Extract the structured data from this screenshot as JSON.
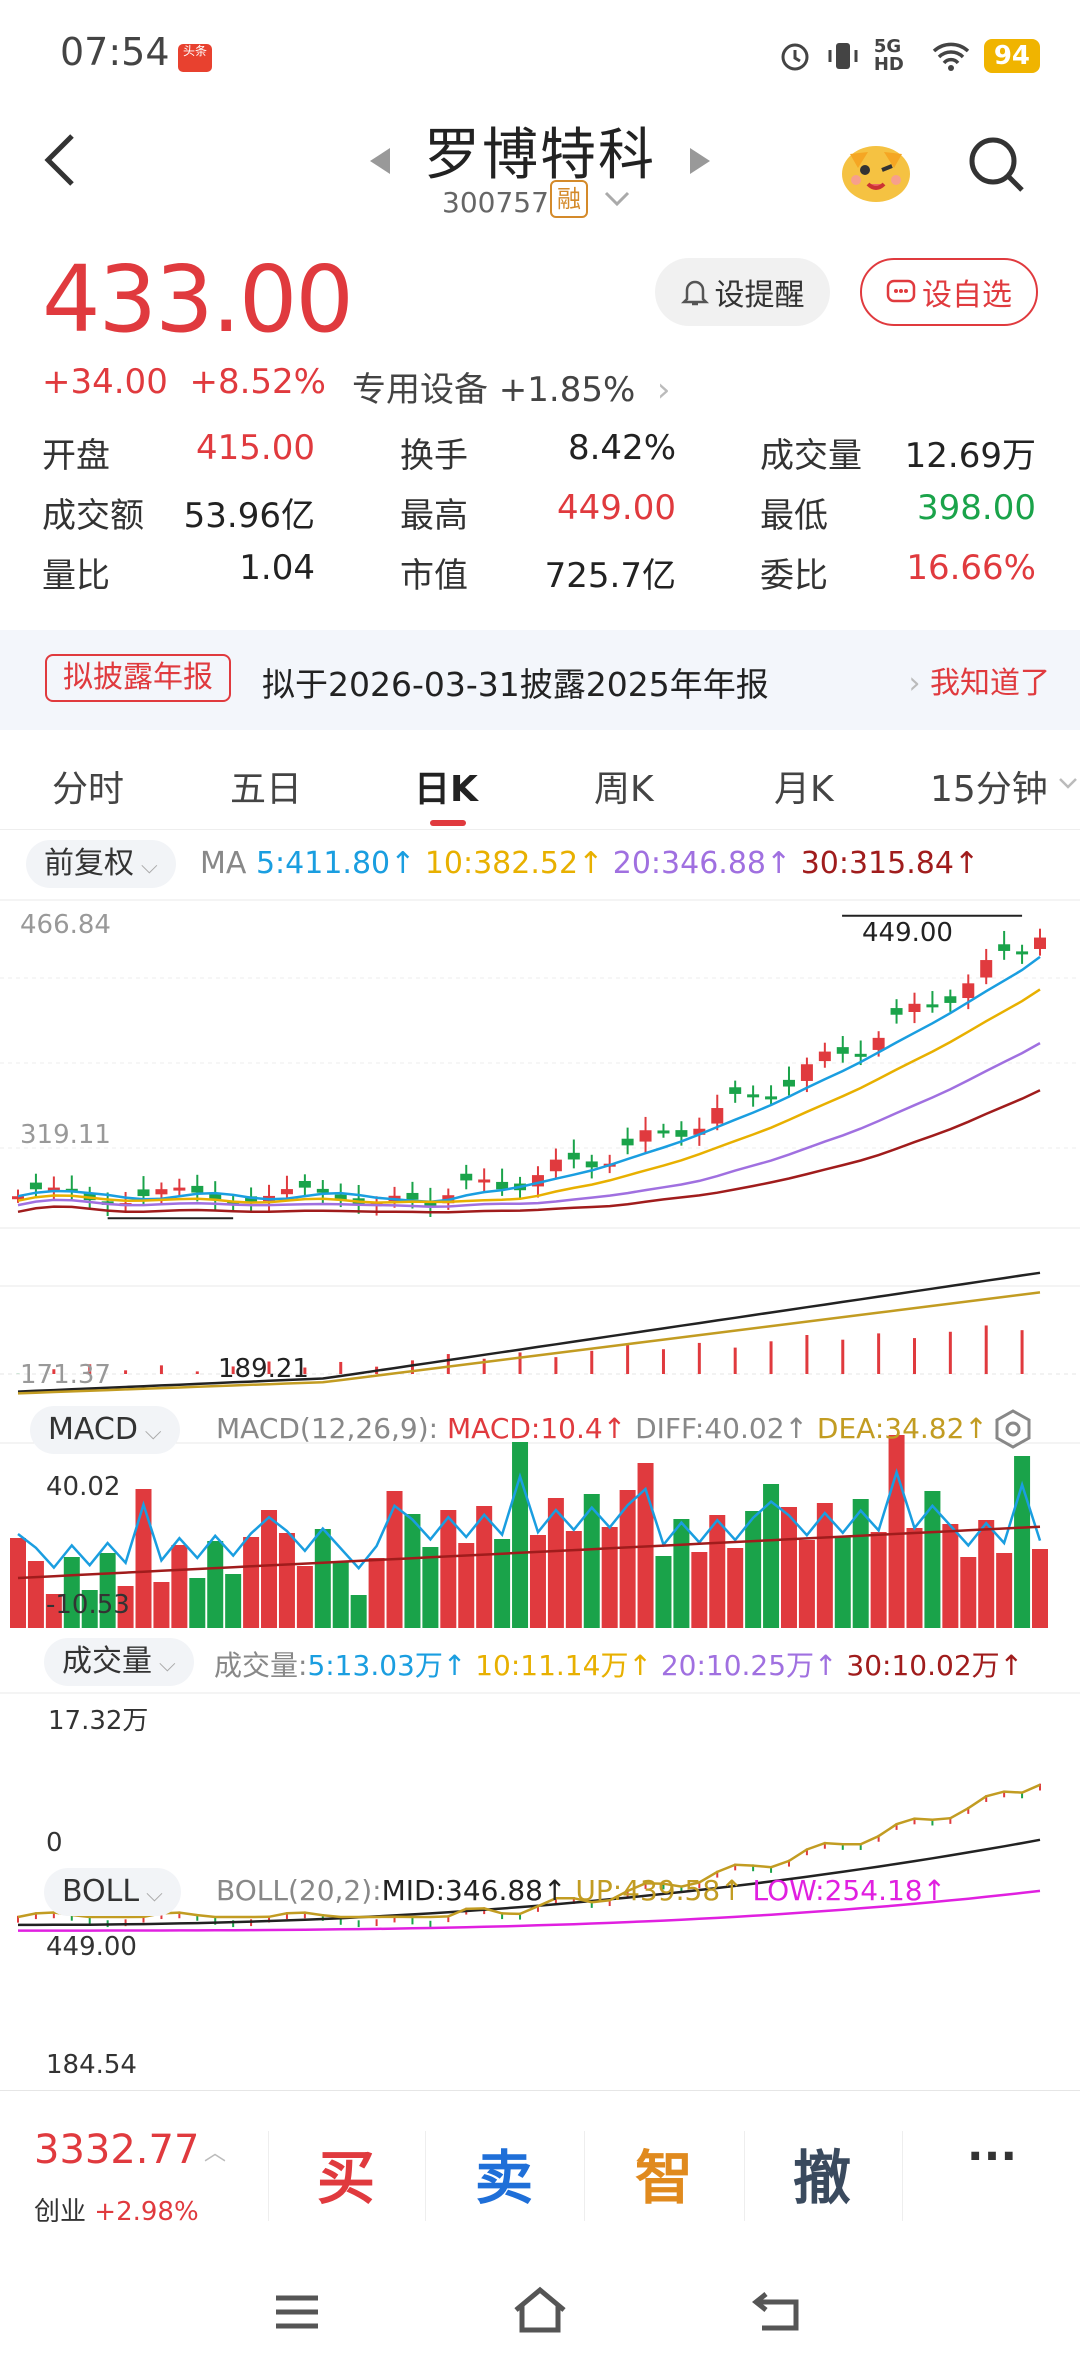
{
  "status": {
    "time": "07:54",
    "toutiao": "头条",
    "net": "5G HD",
    "battery": "94"
  },
  "header": {
    "name": "罗博特科",
    "code": "300757",
    "margin_tag": "融"
  },
  "quote": {
    "price": "433.00",
    "change": "+34.00",
    "change_pct": "+8.52%",
    "sector": "专用设备 +1.85%",
    "remind_label": "设提醒",
    "watch_label": "设自选",
    "stats": [
      {
        "label": "开盘",
        "value": "415.00",
        "color": "red"
      },
      {
        "label": "换手",
        "value": "8.42%",
        "color": "dark"
      },
      {
        "label": "成交量",
        "value": "12.69万",
        "color": "dark"
      },
      {
        "label": "成交额",
        "value": "53.96亿",
        "color": "dark"
      },
      {
        "label": "最高",
        "value": "449.00",
        "color": "red"
      },
      {
        "label": "最低",
        "value": "398.00",
        "color": "green"
      },
      {
        "label": "量比",
        "value": "1.04",
        "color": "dark"
      },
      {
        "label": "市值",
        "value": "725.7亿",
        "color": "dark"
      },
      {
        "label": "委比",
        "value": "16.66%",
        "color": "red"
      }
    ]
  },
  "notice": {
    "tag": "拟披露年报",
    "text": "拟于2026-03-31披露2025年年报",
    "ok": "我知道了"
  },
  "tabs": [
    "分时",
    "五日",
    "日K",
    "周K",
    "月K",
    "15分钟"
  ],
  "active_tab": "日K",
  "kline": {
    "adjust": "前复权",
    "ma_prefix": "MA",
    "ma": [
      {
        "text": "5:411.80↑",
        "color": "#1a9ee0"
      },
      {
        "text": "10:382.52↑",
        "color": "#e8b000"
      },
      {
        "text": "20:346.88↑",
        "color": "#a070e0"
      },
      {
        "text": "30:315.84↑",
        "color": "#a01c1c"
      }
    ],
    "price_top": "466.84",
    "price_mid": "319.11",
    "price_bottom": "171.37",
    "high_mark": "449.00",
    "low_mark": "189.21"
  },
  "macd": {
    "label": "MACD",
    "params": "MACD(12,26,9):",
    "macd": "MACD:10.4↑",
    "diff": "DIFF:40.02↑",
    "dea": "DEA:34.82↑",
    "top": "40.02",
    "bottom": "-10.53"
  },
  "volume": {
    "label": "成交量",
    "prefix": "成交量:",
    "ma5": "5:13.03万↑",
    "ma10": "10:11.14万↑",
    "ma20": "20:10.25万↑",
    "ma30": "30:10.02万↑",
    "top": "17.32万",
    "zero": "0"
  },
  "boll": {
    "label": "BOLL",
    "params": "BOLL(20,2):",
    "mid": "MID:346.88↑",
    "up": "UP:439.58↑",
    "low": "LOW:254.18↑",
    "top": "449.00",
    "bottom": "184.54"
  },
  "bottom": {
    "index_value": "3332.77",
    "index_name": "创业",
    "index_change": "+2.98%",
    "actions": [
      "买",
      "卖",
      "智",
      "撤",
      "···"
    ]
  }
}
